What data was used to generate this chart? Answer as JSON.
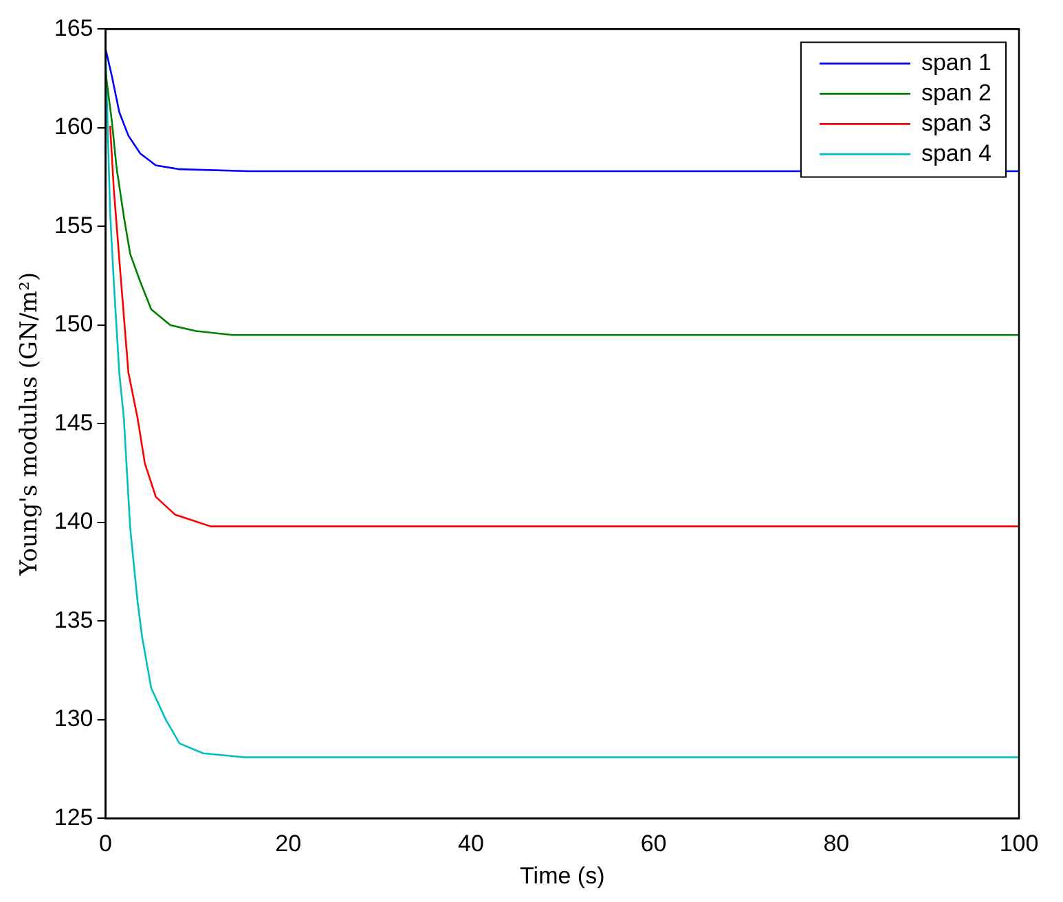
{
  "chart_data": {
    "type": "line",
    "xlabel": "Time (s)",
    "ylabel": "Young's modulus (GN/m²)",
    "xlim": [
      0,
      100
    ],
    "xticks": [
      0,
      20,
      40,
      60,
      80,
      100
    ],
    "ylim": [
      125,
      165
    ],
    "yticks": [
      125,
      130,
      135,
      140,
      145,
      150,
      155,
      160,
      165
    ],
    "grid": false,
    "legend": "top right",
    "marker": "none",
    "line_style": "solid",
    "series": [
      {
        "name": "span 1",
        "color": "#0000ff",
        "x": [
          0,
          0.7,
          1.5,
          2.5,
          3.8,
          5.5,
          8.1,
          15.7,
          100
        ],
        "values": [
          164.0,
          162.6,
          160.8,
          159.6,
          158.7,
          158.1,
          157.9,
          157.8,
          157.8
        ]
      },
      {
        "name": "span 2",
        "color": "#008000",
        "x": [
          0,
          0.7,
          1.2,
          2,
          2.7,
          3.8,
          5,
          7.1,
          9.9,
          13.9,
          100
        ],
        "values": [
          162.8,
          160.3,
          158.0,
          155.5,
          153.6,
          152.2,
          150.8,
          150.0,
          149.7,
          149.5,
          149.5
        ]
      },
      {
        "name": "span 3",
        "color": "#ff0000",
        "x": [
          0.5,
          0.9,
          1.7,
          2.5,
          3.5,
          4.3,
          5.5,
          7.6,
          11.5,
          100
        ],
        "values": [
          160.1,
          156.9,
          152.2,
          147.6,
          145.3,
          143.0,
          141.3,
          140.4,
          139.8,
          139.8
        ]
      },
      {
        "name": "span 4",
        "color": "#00bfbf",
        "x": [
          0,
          0.5,
          0.9,
          1.5,
          2,
          2.7,
          3.5,
          4,
          5,
          6.6,
          8.1,
          10.7,
          15.2,
          100
        ],
        "values": [
          163.8,
          155.7,
          152.2,
          147.6,
          145.3,
          139.7,
          136.0,
          134.2,
          131.6,
          130.0,
          128.8,
          128.3,
          128.1,
          128.1
        ]
      }
    ]
  }
}
